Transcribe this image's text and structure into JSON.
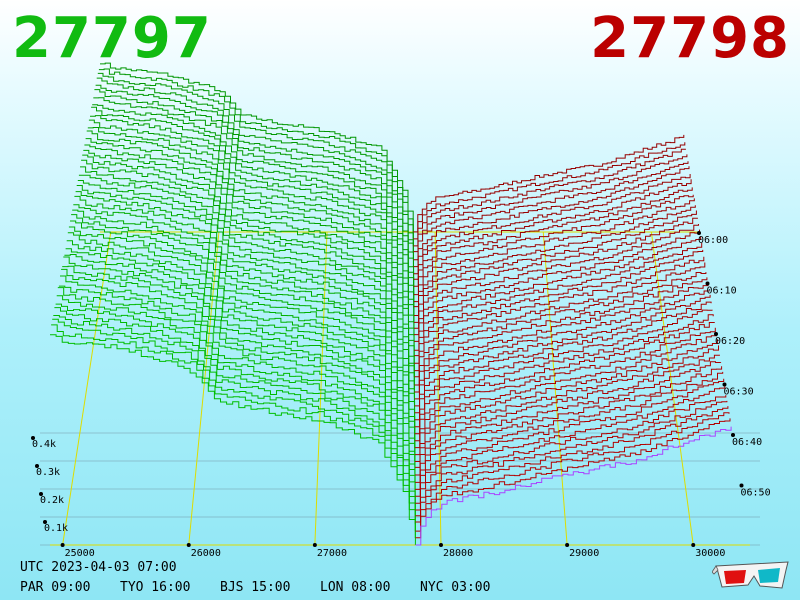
{
  "header": {
    "bid_price": "27797",
    "ask_price": "27798"
  },
  "footer": {
    "utc": "UTC 2023-04-03 07:00",
    "cities": [
      {
        "label": "PAR 09:00"
      },
      {
        "label": "TYO 16:00"
      },
      {
        "label": "BJS 15:00"
      },
      {
        "label": "LON 08:00"
      },
      {
        "label": "NYC 03:00"
      }
    ]
  },
  "colors": {
    "bid": "#11bb11",
    "ask": "#bb0000",
    "grid": "#dddd00",
    "latest": "#aa44ff"
  },
  "chart_data": {
    "type": "area",
    "x_ticks": [
      "25000",
      "26000",
      "27000",
      "28000",
      "29000",
      "30000"
    ],
    "y_ticks": [
      "0.1k",
      "0.2k",
      "0.3k",
      "0.4k"
    ],
    "time_ticks": [
      "06:00",
      "06:10",
      "06:20",
      "06:30",
      "06:40",
      "06:50"
    ],
    "xlim": [
      24900,
      30450
    ],
    "ylim": [
      0,
      500
    ],
    "bid_profile": {
      "price": [
        24900,
        25000,
        25500,
        26000,
        26200,
        26500,
        27000,
        27500,
        27700,
        27797
      ],
      "cum_volume": [
        480,
        465,
        445,
        400,
        330,
        310,
        285,
        235,
        120,
        0
      ]
    },
    "ask_profile": {
      "price": [
        27798,
        27850,
        28000,
        28500,
        29000,
        29500,
        30000,
        30300
      ],
      "cum_volume": [
        0,
        60,
        95,
        125,
        160,
        190,
        240,
        270
      ]
    }
  }
}
